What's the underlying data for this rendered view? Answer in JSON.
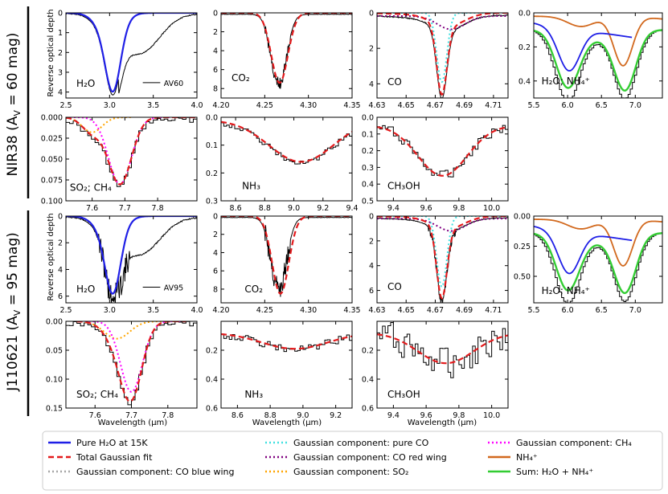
{
  "figure": {
    "row1_label": "NIR38 (A",
    "row1_sub": "V",
    "row1_rest": " = 60 mag)",
    "row2_label": "J110621 (A",
    "row2_sub": "V",
    "row2_rest": " = 95 mag)",
    "ylabel": "Reverse optical depth",
    "xlabel": "Wavelength (μm)"
  },
  "legend": [
    {
      "label": "Pure H₂O at 15K",
      "color": "#1f1fe6",
      "style": "solid"
    },
    {
      "label": "Total Gaussian fit",
      "color": "#e31a1c",
      "style": "dashed"
    },
    {
      "label": "Gaussian component: CO blue wing",
      "color": "#a6a6a6",
      "style": "dotted"
    },
    {
      "label": "Gaussian component: pure CO",
      "color": "#40e0e0",
      "style": "dotted"
    },
    {
      "label": "Gaussian component: CO red wing",
      "color": "#800080",
      "style": "dotted"
    },
    {
      "label": "Gaussian component: SO₂",
      "color": "#ffa500",
      "style": "dotted"
    },
    {
      "label": "Gaussian component: CH₄",
      "color": "#ff00ff",
      "style": "dotted"
    },
    {
      "label": "NH₄⁺",
      "color": "#d2691e",
      "style": "solid"
    },
    {
      "label": "Sum: H₂O + NH₄⁺",
      "color": "#33cc33",
      "style": "solid"
    }
  ],
  "chart_data": [
    {
      "id": "r1-h2o",
      "type": "line",
      "label": "H₂O",
      "annotation": "AV60",
      "xlim": [
        2.5,
        4.0
      ],
      "ylim": [
        0,
        4.3
      ],
      "xticks": [
        "2.5",
        "3.0",
        "3.5",
        "4.0"
      ],
      "yticks": [
        "0",
        "1",
        "2",
        "3",
        "4"
      ],
      "series": [
        "observed",
        "pure_h2o"
      ],
      "band_center_um": 3.05
    },
    {
      "id": "r1-co2",
      "type": "line",
      "label": "CO₂",
      "xlim": [
        4.2,
        4.35
      ],
      "ylim": [
        0,
        9
      ],
      "xticks": [
        "4.20",
        "4.25",
        "4.30",
        "4.35"
      ],
      "yticks": [
        "0",
        "2",
        "4",
        "6",
        "8"
      ],
      "series": [
        "observed",
        "total_gaussian_fit"
      ],
      "band_center_um": 4.27
    },
    {
      "id": "r1-co",
      "type": "line",
      "label": "CO",
      "xlim": [
        4.63,
        4.72
      ],
      "ylim": [
        0,
        4.8
      ],
      "xticks": [
        "4.63",
        "4.65",
        "4.67",
        "4.69",
        "4.71"
      ],
      "yticks": [
        "0",
        "2",
        "4"
      ],
      "series": [
        "observed",
        "total_gaussian_fit",
        "pure_co",
        "co_red_wing"
      ],
      "band_center_um": 4.675
    },
    {
      "id": "r1-nh4",
      "type": "line",
      "label": "H₂O; NH₄⁺",
      "xlim": [
        5.5,
        7.4
      ],
      "ylim": [
        0,
        0.5
      ],
      "xticks": [
        "5.5",
        "6.0",
        "6.5",
        "7.0"
      ],
      "yticks": [
        "0.0",
        "0.2",
        "0.4"
      ],
      "series": [
        "observed",
        "pure_h2o",
        "nh4",
        "sum_h2o_nh4"
      ],
      "band_centers_um": [
        6.0,
        6.85
      ]
    },
    {
      "id": "r1-so2",
      "type": "line",
      "label": "SO₂; CH₄",
      "xlim": [
        7.52,
        7.92
      ],
      "ylim": [
        0,
        0.1
      ],
      "xticks": [
        "7.6",
        "7.7",
        "7.8"
      ],
      "yticks": [
        "0.000",
        "0.025",
        "0.050",
        "0.075",
        "0.100"
      ],
      "series": [
        "observed",
        "total_gaussian_fit",
        "so2",
        "ch4"
      ],
      "band_center_um": 7.68
    },
    {
      "id": "r1-nh3",
      "type": "line",
      "label": "NH₃",
      "xlim": [
        8.5,
        9.4
      ],
      "ylim": [
        0,
        0.3
      ],
      "xticks": [
        "8.6",
        "8.8",
        "9.0",
        "9.2",
        "9.4"
      ],
      "yticks": [
        "0.0",
        "0.1",
        "0.2",
        "0.3"
      ],
      "series": [
        "observed",
        "total_gaussian_fit"
      ],
      "band_center_um": 9.0
    },
    {
      "id": "r1-ch3oh",
      "type": "line",
      "label": "CH₃OH",
      "xlim": [
        9.3,
        10.1
      ],
      "ylim": [
        0,
        0.5
      ],
      "xticks": [
        "9.4",
        "9.6",
        "9.8",
        "10.0"
      ],
      "yticks": [
        "0.0",
        "0.1",
        "0.2",
        "0.3",
        "0.4",
        "0.5"
      ],
      "series": [
        "observed",
        "total_gaussian_fit"
      ],
      "band_center_um": 9.72
    },
    {
      "id": "r2-h2o",
      "type": "line",
      "label": "H₂O",
      "annotation": "AV95",
      "xlim": [
        2.5,
        4.0
      ],
      "ylim": [
        0,
        6.5
      ],
      "xticks": [
        "2.5",
        "3.0",
        "3.5",
        "4.0"
      ],
      "yticks": [
        "0",
        "2",
        "4",
        "6"
      ],
      "series": [
        "observed",
        "pure_h2o"
      ],
      "band_center_um": 3.05
    },
    {
      "id": "r2-co2",
      "type": "line",
      "label": "CO₂",
      "xlim": [
        4.2,
        4.35
      ],
      "ylim": [
        0,
        9.5
      ],
      "xticks": [
        "4.20",
        "4.25",
        "4.30",
        "4.35"
      ],
      "yticks": [
        "0",
        "2",
        "4",
        "6",
        "8"
      ],
      "series": [
        "observed",
        "total_gaussian_fit"
      ],
      "band_center_um": 4.27
    },
    {
      "id": "r2-co",
      "type": "line",
      "label": "CO",
      "xlim": [
        4.63,
        4.72
      ],
      "ylim": [
        0,
        7
      ],
      "xticks": [
        "4.63",
        "4.65",
        "4.67",
        "4.69",
        "4.71"
      ],
      "yticks": [
        "0",
        "2",
        "4",
        "6"
      ],
      "series": [
        "observed",
        "total_gaussian_fit",
        "pure_co",
        "co_red_wing"
      ],
      "band_center_um": 4.675
    },
    {
      "id": "r2-nh4",
      "type": "line",
      "label": "H₂O; NH₄⁺",
      "xlim": [
        5.5,
        7.4
      ],
      "ylim": [
        0,
        0.72
      ],
      "xticks": [
        "5.5",
        "6.0",
        "6.5",
        "7.0"
      ],
      "yticks": [
        "0.00",
        "0.25",
        "0.50"
      ],
      "series": [
        "observed",
        "pure_h2o",
        "nh4",
        "sum_h2o_nh4"
      ],
      "band_centers_um": [
        6.0,
        6.85
      ]
    },
    {
      "id": "r2-so2",
      "type": "line",
      "label": "SO₂; CH₄",
      "xlim": [
        7.52,
        7.88
      ],
      "ylim": [
        0,
        0.15
      ],
      "xticks": [
        "7.6",
        "7.7",
        "7.8"
      ],
      "yticks": [
        "0.00",
        "0.05",
        "0.10",
        "0.15"
      ],
      "series": [
        "observed",
        "total_gaussian_fit",
        "so2",
        "ch4"
      ],
      "band_center_um": 7.7
    },
    {
      "id": "r2-nh3",
      "type": "line",
      "label": "NH₃",
      "xlim": [
        8.5,
        9.3
      ],
      "ylim": [
        0,
        0.6
      ],
      "xticks": [
        "8.6",
        "8.8",
        "9.0",
        "9.2"
      ],
      "yticks": [
        "0.2",
        "0.4",
        "0.6"
      ],
      "series": [
        "observed",
        "total_gaussian_fit"
      ],
      "band_center_um": 8.95
    },
    {
      "id": "r2-ch3oh",
      "type": "line",
      "label": "CH₃OH",
      "xlim": [
        9.3,
        10.1
      ],
      "ylim": [
        0,
        0.6
      ],
      "xticks": [
        "9.4",
        "9.6",
        "9.8",
        "10.0"
      ],
      "yticks": [
        "0.2",
        "0.4",
        "0.6"
      ],
      "series": [
        "observed",
        "total_gaussian_fit"
      ],
      "band_center_um": 9.72
    }
  ]
}
